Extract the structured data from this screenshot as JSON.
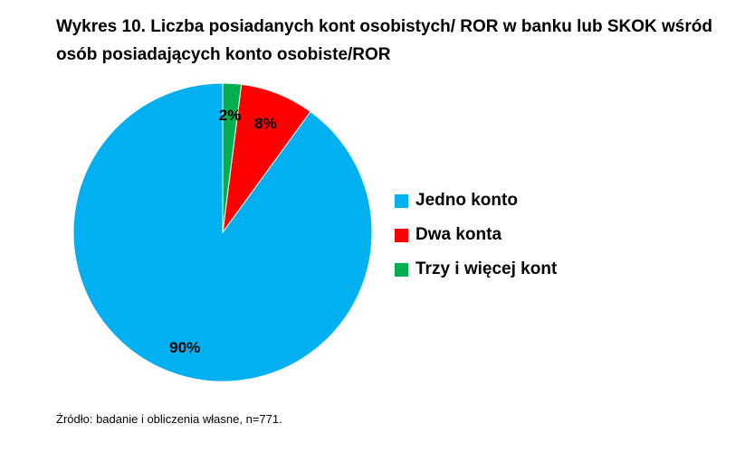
{
  "title": "Wykres 10. Liczba posiadanych kont osobistych/ ROR w banku lub SKOK wśród osób posiadających konto osobiste/ROR",
  "source": "Źródło: badanie i obliczenia własne, n=771.",
  "chart_data": {
    "type": "pie",
    "title": "Wykres 10. Liczba posiadanych kont osobistych/ ROR w banku lub SKOK wśród osób posiadających konto osobiste/ROR",
    "legend_position": "right",
    "slices": [
      {
        "name": "Jedno konto",
        "value": 90,
        "label": "90%",
        "color": "#00B0F0"
      },
      {
        "name": "Dwa konta",
        "value": 8,
        "label": "8%",
        "color": "#FF0000"
      },
      {
        "name": "Trzy i więcej kont",
        "value": 2,
        "label": "2%",
        "color": "#00B050"
      }
    ]
  }
}
